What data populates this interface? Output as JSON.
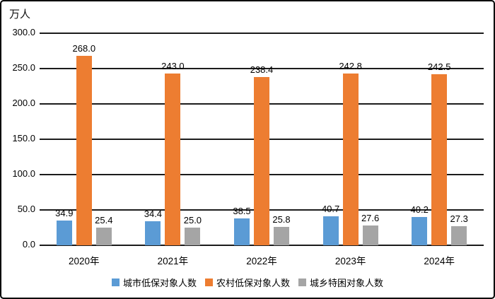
{
  "chart_data": {
    "type": "bar",
    "unit_label": "万人",
    "categories": [
      "2020年",
      "2021年",
      "2022年",
      "2023年",
      "2024年"
    ],
    "series": [
      {
        "key": "urban-dibao",
        "name": "城市低保对象人数",
        "color": "#5B9BD5",
        "values": [
          34.9,
          34.4,
          38.5,
          40.7,
          40.2
        ]
      },
      {
        "key": "rural-dibao",
        "name": "农村低保对象人数",
        "color": "#ED7D31",
        "values": [
          268.0,
          243.0,
          238.4,
          242.8,
          242.5
        ]
      },
      {
        "key": "urban-rural-tekun",
        "name": "城乡特困对象人数",
        "color": "#A5A5A5",
        "values": [
          25.4,
          25.0,
          25.8,
          27.6,
          27.3
        ]
      }
    ],
    "ylim": [
      0,
      300
    ],
    "ytick_step": 50,
    "yticks": [
      "0.0",
      "50.0",
      "100.0",
      "150.0",
      "200.0",
      "250.0",
      "300.0"
    ],
    "grid": true,
    "legend_position": "bottom",
    "data_labels": true,
    "colors": {
      "grid_line": "#1c1c1c",
      "text": "#000000",
      "frame_border": "#000000",
      "background": "#ffffff"
    }
  }
}
